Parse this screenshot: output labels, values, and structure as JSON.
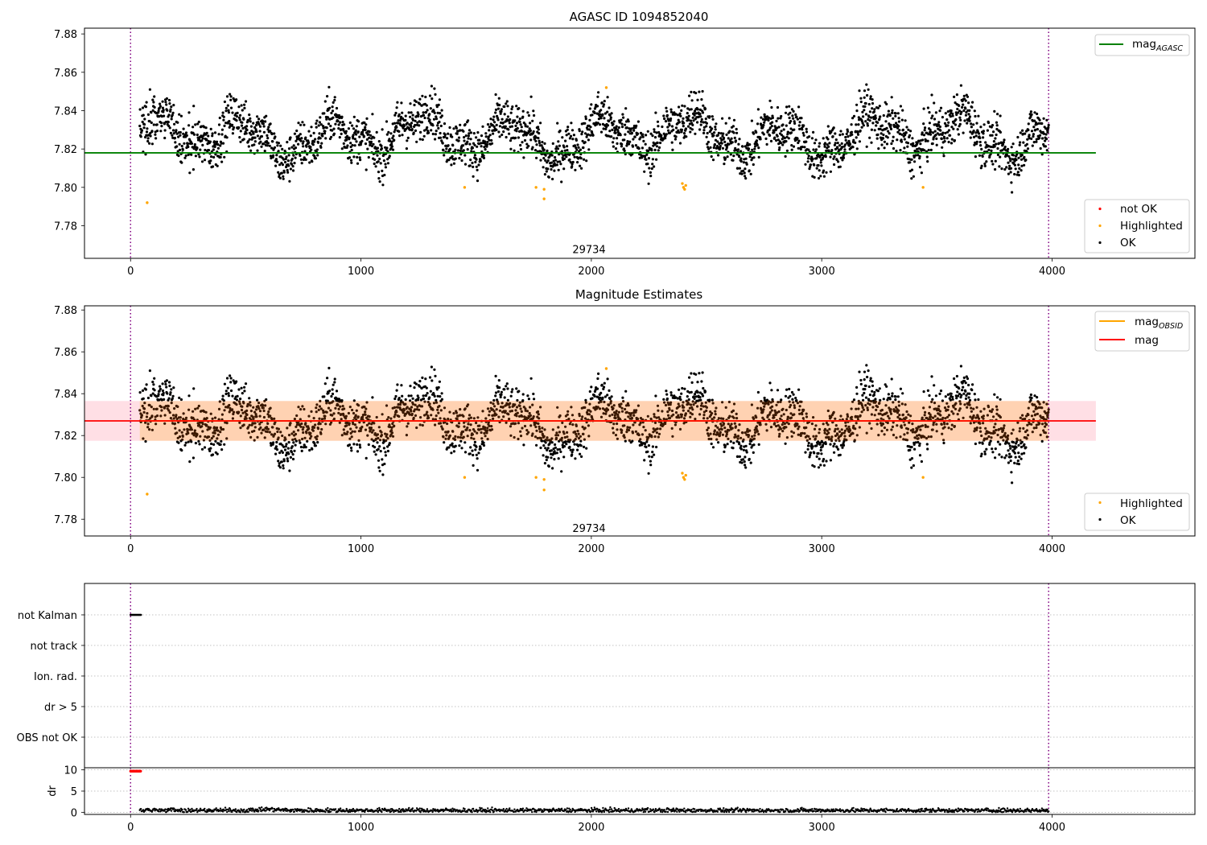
{
  "figure": {
    "title": "AGASC ID 1094852040"
  },
  "chart_data": [
    {
      "type": "scatter",
      "title": "AGASC ID 1094852040",
      "xlim": [
        -200,
        4620
      ],
      "ylim": [
        7.763,
        7.883
      ],
      "x_ticks": [
        0,
        1000,
        2000,
        3000,
        4000
      ],
      "y_ticks": [
        7.78,
        7.8,
        7.82,
        7.84,
        7.86,
        7.88
      ],
      "obsid_boundaries": [
        0,
        3985
      ],
      "obsid_label": {
        "text": "29734",
        "x": 1990,
        "y": 7.7675
      },
      "line_legend": {
        "main": "mag",
        "sub": "AGASC",
        "color": "#008000"
      },
      "agasc_mag": {
        "value": 7.818,
        "x_range": [
          -200,
          4190
        ]
      },
      "scatter_legend": [
        {
          "name": "not OK",
          "color": "#ff0000"
        },
        {
          "name": "Highlighted",
          "color": "#ffa500"
        },
        {
          "name": "OK",
          "color": "#000000"
        }
      ],
      "highlighted_points": [
        [
          72,
          7.792
        ],
        [
          1450,
          7.8
        ],
        [
          1760,
          7.8
        ],
        [
          1795,
          7.799
        ],
        [
          1795,
          7.794
        ],
        [
          2065,
          7.852
        ],
        [
          2395,
          7.802
        ],
        [
          2400,
          7.8
        ],
        [
          2405,
          7.799
        ],
        [
          2410,
          7.801
        ],
        [
          3440,
          7.8
        ]
      ],
      "ok_points": {
        "x_range": [
          40,
          3985
        ],
        "count": 2950,
        "mean": 7.827,
        "scatter": 0.011
      }
    },
    {
      "type": "scatter",
      "title": "Magnitude Estimates",
      "xlim": [
        -200,
        4620
      ],
      "ylim": [
        7.772,
        7.882
      ],
      "x_ticks": [
        0,
        1000,
        2000,
        3000,
        4000
      ],
      "y_ticks": [
        7.78,
        7.8,
        7.82,
        7.84,
        7.86,
        7.88
      ],
      "obsid_boundaries": [
        0,
        3985
      ],
      "obsid_label": {
        "text": "29734",
        "x": 1990,
        "y": 7.7755
      },
      "line_legend": [
        {
          "main": "mag",
          "sub": "OBSID",
          "color": "#ffa500"
        },
        {
          "main": "mag",
          "sub": "",
          "color": "#ff0000"
        }
      ],
      "mag_obsid": {
        "value": 7.827,
        "band": [
          7.8175,
          7.8365
        ],
        "x_range": [
          40,
          3985
        ]
      },
      "mag": {
        "value": 7.827,
        "band": [
          7.8175,
          7.8365
        ],
        "x_range": [
          -200,
          4190
        ]
      },
      "scatter_legend": [
        {
          "name": "Highlighted",
          "color": "#ffa500"
        },
        {
          "name": "OK",
          "color": "#000000"
        }
      ],
      "highlighted_points": [
        [
          72,
          7.792
        ],
        [
          1450,
          7.8
        ],
        [
          1760,
          7.8
        ],
        [
          1795,
          7.799
        ],
        [
          1795,
          7.794
        ],
        [
          2065,
          7.852
        ],
        [
          2395,
          7.802
        ],
        [
          2400,
          7.8
        ],
        [
          2405,
          7.799
        ],
        [
          2410,
          7.801
        ],
        [
          3440,
          7.8
        ]
      ],
      "ok_points": {
        "x_range": [
          40,
          3985
        ],
        "count": 2950,
        "mean": 7.827,
        "scatter": 0.011
      }
    },
    {
      "type": "scatter",
      "xlim": [
        -200,
        4620
      ],
      "categories": [
        "not Kalman",
        "not track",
        "Ion. rad.",
        "dr > 5",
        "OBS not OK"
      ],
      "obsid_boundaries": [
        0,
        3985
      ],
      "flags": [
        {
          "category": "not Kalman",
          "x_range": [
            0,
            45
          ]
        }
      ]
    },
    {
      "type": "scatter",
      "ylabel": "dr",
      "xlim": [
        -200,
        4620
      ],
      "ylim": [
        -0.5,
        10.5
      ],
      "x_ticks": [
        0,
        1000,
        2000,
        3000,
        4000
      ],
      "y_ticks": [
        0,
        5,
        10
      ],
      "obsid_boundaries": [
        0,
        3985
      ],
      "high_dr": {
        "value": 9.7,
        "x_range": [
          0,
          45
        ],
        "color": "#ff0000"
      },
      "dr_points": {
        "x_range": [
          40,
          3985
        ],
        "count": 1500,
        "mean": 0.45,
        "scatter": 0.25
      }
    }
  ]
}
